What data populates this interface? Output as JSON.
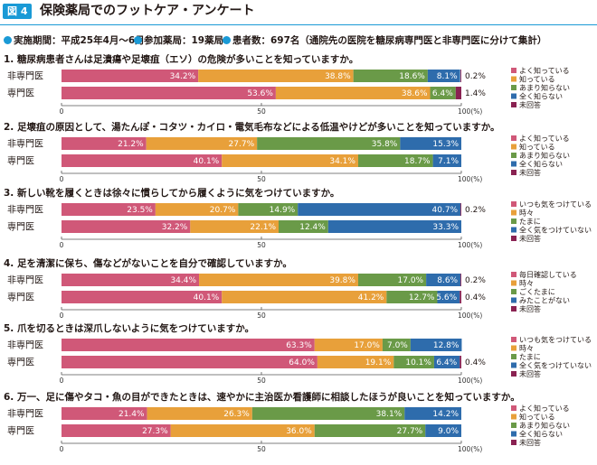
{
  "figure": {
    "badge": "図 4",
    "title": "保険薬局でのフットケア・アンケート",
    "meta": [
      "実施期間：平成25年4月～6月",
      "参加薬局：19薬局",
      "患者数：697名（通院先の医院を糖尿病専門医と非専門医に分けて集計）"
    ]
  },
  "colors": {
    "accent": "#1a9ad6",
    "seg": [
      "#d05878",
      "#e8a03a",
      "#6a9a48",
      "#2e6cac",
      "#8a2252"
    ]
  },
  "chart_data": [
    {
      "type": "bar",
      "orientation": "horizontal",
      "stacked": true,
      "title": "1. 糖尿病患者さんは足潰瘍や足壊疽（エソ）の危険が多いことを知っていますか。",
      "categories": [
        "非専門医",
        "専門医"
      ],
      "series": [
        {
          "name": "よく知っている",
          "values": [
            34.2,
            53.6
          ]
        },
        {
          "name": "知っている",
          "values": [
            38.8,
            38.6
          ]
        },
        {
          "name": "あまり知らない",
          "values": [
            18.6,
            6.4
          ]
        },
        {
          "name": "全く知らない",
          "values": [
            8.1,
            0.0
          ]
        },
        {
          "name": "未回答",
          "values": [
            0.2,
            1.4
          ]
        }
      ],
      "labels": [
        [
          "34.2%",
          "38.8%",
          "18.6%",
          "8.1%",
          "0.2%"
        ],
        [
          "53.6%",
          "38.6%",
          "6.4%",
          "",
          "1.4%"
        ]
      ],
      "xlim": [
        0,
        100
      ],
      "ticks": [
        "0",
        "50",
        "100(%)"
      ]
    },
    {
      "type": "bar",
      "orientation": "horizontal",
      "stacked": true,
      "title": "2. 足壊疽の原因として、湯たんぽ・コタツ・カイロ・電気毛布などによる低温やけどが多いことを知っていますか。",
      "categories": [
        "非専門医",
        "専門医"
      ],
      "series": [
        {
          "name": "よく知っている",
          "values": [
            21.2,
            40.1
          ]
        },
        {
          "name": "知っている",
          "values": [
            27.7,
            34.1
          ]
        },
        {
          "name": "あまり知らない",
          "values": [
            35.8,
            18.7
          ]
        },
        {
          "name": "全く知らない",
          "values": [
            15.3,
            7.1
          ]
        },
        {
          "name": "未回答",
          "values": [
            0,
            0
          ]
        }
      ],
      "labels": [
        [
          "21.2%",
          "27.7%",
          "35.8%",
          "15.3%",
          ""
        ],
        [
          "40.1%",
          "34.1%",
          "18.7%",
          "7.1%",
          ""
        ]
      ],
      "xlim": [
        0,
        100
      ],
      "ticks": [
        "0",
        "50",
        "100(%)"
      ]
    },
    {
      "type": "bar",
      "orientation": "horizontal",
      "stacked": true,
      "title": "3. 新しい靴を履くときは徐々に慣らしてから履くように気をつけていますか。",
      "categories": [
        "非専門医",
        "専門医"
      ],
      "series": [
        {
          "name": "いつも気をつけている",
          "values": [
            23.5,
            32.2
          ]
        },
        {
          "name": "時々",
          "values": [
            20.7,
            22.1
          ]
        },
        {
          "name": "たまに",
          "values": [
            14.9,
            12.4
          ]
        },
        {
          "name": "全く気をつけていない",
          "values": [
            40.7,
            33.3
          ]
        },
        {
          "name": "未回答",
          "values": [
            0.2,
            0
          ]
        }
      ],
      "labels": [
        [
          "23.5%",
          "20.7%",
          "14.9%",
          "40.7%",
          "0.2%"
        ],
        [
          "32.2%",
          "22.1%",
          "12.4%",
          "33.3%",
          ""
        ]
      ],
      "xlim": [
        0,
        100
      ],
      "ticks": [
        "0",
        "50",
        "100(%)"
      ]
    },
    {
      "type": "bar",
      "orientation": "horizontal",
      "stacked": true,
      "title": "4. 足を清潔に保ち、傷などがないことを自分で確認していますか。",
      "categories": [
        "非専門医",
        "専門医"
      ],
      "series": [
        {
          "name": "毎日確認している",
          "values": [
            34.4,
            40.1
          ]
        },
        {
          "name": "時々",
          "values": [
            39.8,
            41.2
          ]
        },
        {
          "name": "ごくたまに",
          "values": [
            17.0,
            12.7
          ]
        },
        {
          "name": "みたことがない",
          "values": [
            8.6,
            5.6
          ]
        },
        {
          "name": "未回答",
          "values": [
            0.2,
            0.4
          ]
        }
      ],
      "labels": [
        [
          "34.4%",
          "39.8%",
          "17.0%",
          "8.6%",
          "0.2%"
        ],
        [
          "40.1%",
          "41.2%",
          "12.7%",
          "5.6%",
          "0.4%"
        ]
      ],
      "xlim": [
        0,
        100
      ],
      "ticks": [
        "0",
        "50",
        "100(%)"
      ]
    },
    {
      "type": "bar",
      "orientation": "horizontal",
      "stacked": true,
      "title": "5. 爪を切るときは深爪しないように気をつけていますか。",
      "categories": [
        "非専門医",
        "専門医"
      ],
      "series": [
        {
          "name": "いつも気をつけている",
          "values": [
            63.3,
            64.0
          ]
        },
        {
          "name": "時々",
          "values": [
            17.0,
            19.1
          ]
        },
        {
          "name": "たまに",
          "values": [
            7.0,
            10.1
          ]
        },
        {
          "name": "全く気をつけていない",
          "values": [
            12.8,
            6.4
          ]
        },
        {
          "name": "未回答",
          "values": [
            0,
            0.4
          ]
        }
      ],
      "labels": [
        [
          "63.3%",
          "17.0%",
          "7.0%",
          "12.8%",
          ""
        ],
        [
          "64.0%",
          "19.1%",
          "10.1%",
          "6.4%",
          "0.4%"
        ]
      ],
      "xlim": [
        0,
        100
      ],
      "ticks": [
        "0",
        "50",
        "100(%)"
      ]
    },
    {
      "type": "bar",
      "orientation": "horizontal",
      "stacked": true,
      "title": "6. 万一、足に傷やタコ・魚の目ができたときは、速やかに主治医か看護師に相談したほうが良いことを知っていますか。",
      "categories": [
        "非専門医",
        "専門医"
      ],
      "series": [
        {
          "name": "よく知っている",
          "values": [
            21.4,
            27.3
          ]
        },
        {
          "name": "知っている",
          "values": [
            26.3,
            36.0
          ]
        },
        {
          "name": "あまり知らない",
          "values": [
            38.1,
            27.7
          ]
        },
        {
          "name": "全く知らない",
          "values": [
            14.2,
            9.0
          ]
        },
        {
          "name": "未回答",
          "values": [
            0,
            0
          ]
        }
      ],
      "labels": [
        [
          "21.4%",
          "26.3%",
          "38.1%",
          "14.2%",
          ""
        ],
        [
          "27.3%",
          "36.0%",
          "27.7%",
          "9.0%",
          ""
        ]
      ],
      "xlim": [
        0,
        100
      ],
      "ticks": [
        "0",
        "50",
        "100(%)"
      ]
    }
  ]
}
